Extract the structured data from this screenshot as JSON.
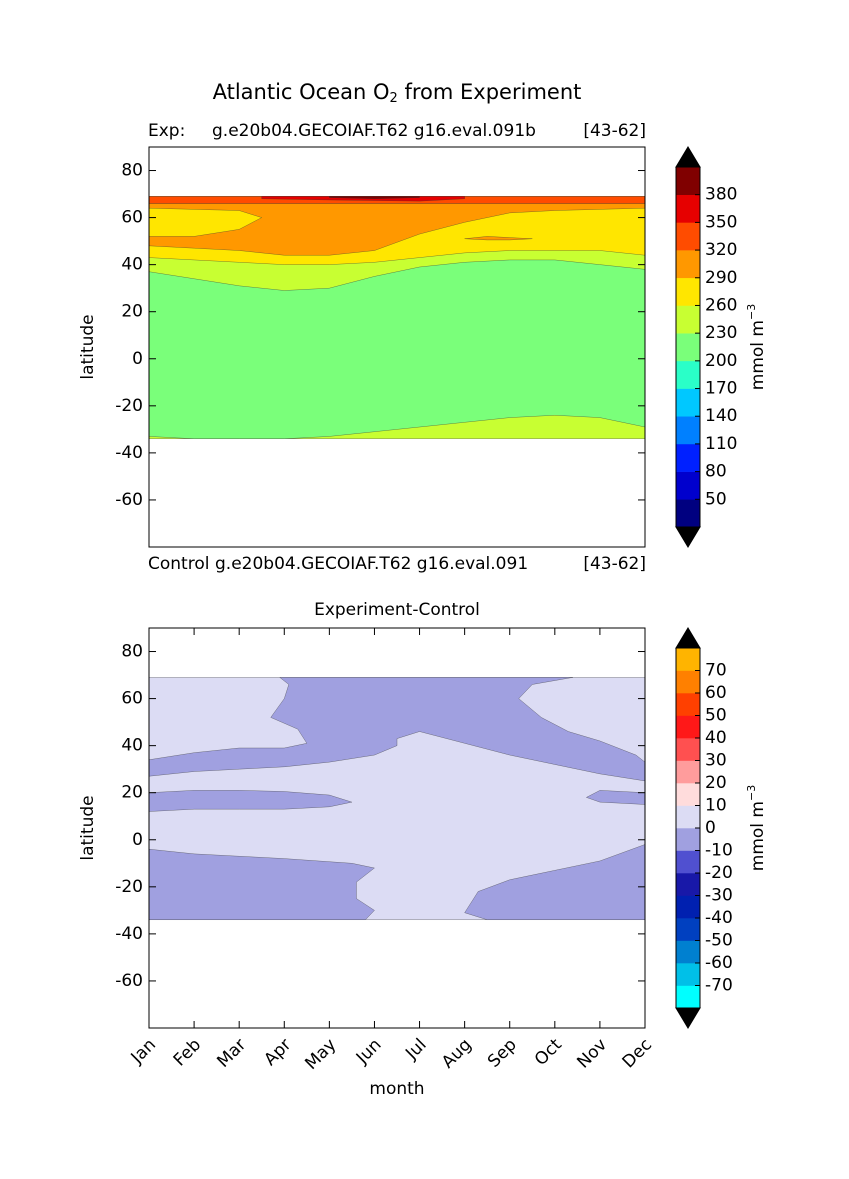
{
  "figure_title": [
    "Atlantic Ocean O",
    "2",
    " from Experiment"
  ],
  "chart_data": [
    {
      "type": "contour",
      "title_left": "Exp:",
      "title": "g.e20b04.GECOIAF.T62 g16.eval.091b",
      "title_right": "[43-62]",
      "footer_left": "Control",
      "footer": "g.e20b04.GECOIAF.T62 g16.eval.091",
      "footer_right": "[43-62]",
      "ylabel": "latitude",
      "xlim": [
        0,
        11
      ],
      "ylim": [
        -80,
        90
      ],
      "yticks": [
        -60,
        -40,
        -20,
        0,
        20,
        40,
        60,
        80
      ],
      "colorbar": {
        "label": [
          "mmol m",
          "−3"
        ],
        "levels": [
          20,
          50,
          80,
          110,
          140,
          170,
          200,
          230,
          260,
          290,
          320,
          350,
          380,
          410
        ],
        "colors": [
          "#000080",
          "#0000cd",
          "#0020ff",
          "#0080ff",
          "#00c8ff",
          "#2affc8",
          "#7aff7a",
          "#c8ff32",
          "#ffe600",
          "#ff9800",
          "#ff4c00",
          "#e60000",
          "#800000"
        ],
        "ticks": [
          50,
          80,
          110,
          140,
          170,
          200,
          230,
          260,
          290,
          320,
          350,
          380
        ],
        "extend_color": "#000000"
      },
      "regions": [
        {
          "value": 230,
          "month": [
            0,
            11,
            11,
            0
          ],
          "lat": [
            -34,
            -34,
            69,
            69
          ]
        },
        {
          "value": 200,
          "month": [
            0,
            1,
            2,
            3,
            4,
            5,
            6,
            7,
            8,
            9,
            10,
            11,
            11,
            10,
            9,
            8,
            7,
            6,
            5,
            4,
            3,
            2,
            1,
            0
          ],
          "lat": [
            -33,
            -34,
            -34,
            -34,
            -33,
            -31,
            -29,
            -27,
            -25,
            -24,
            -25,
            -29,
            38,
            40,
            42,
            42,
            41,
            39,
            35,
            30,
            29,
            31,
            34,
            37
          ]
        },
        {
          "value": 260,
          "month": [
            0,
            1,
            2,
            3,
            4,
            5,
            6,
            7,
            8,
            9,
            10,
            11,
            11,
            0
          ],
          "lat": [
            43,
            42,
            41,
            40,
            40,
            41,
            43,
            45,
            46,
            46,
            46,
            44,
            69,
            69
          ]
        },
        {
          "value": 290,
          "month": [
            0,
            1,
            2,
            3,
            4,
            5,
            6,
            7,
            8,
            9,
            11,
            11,
            0
          ],
          "lat": [
            48,
            47,
            46,
            44,
            44,
            46,
            53,
            58,
            62,
            63,
            64,
            66,
            66
          ]
        },
        {
          "value": 260,
          "month": [
            0,
            1,
            2,
            2.5,
            2,
            0
          ],
          "lat": [
            52,
            52,
            55,
            60,
            63,
            64
          ]
        },
        {
          "value": 290,
          "month": [
            7,
            7.5,
            8.5,
            8,
            7.5
          ],
          "lat": [
            51,
            52,
            51,
            50.5,
            50.5
          ]
        },
        {
          "value": 320,
          "month": [
            0,
            11,
            11,
            0
          ],
          "lat": [
            66,
            66,
            69,
            69
          ]
        },
        {
          "value": 350,
          "month": [
            2.5,
            4,
            6,
            7,
            7,
            2.5
          ],
          "lat": [
            68,
            67.5,
            67,
            68,
            69,
            69
          ]
        },
        {
          "value": 380,
          "month": [
            4,
            5,
            6,
            6,
            4
          ],
          "lat": [
            68.5,
            68,
            68.5,
            69,
            69
          ]
        }
      ]
    },
    {
      "type": "contour",
      "title": "Experiment-Control",
      "xlabel": "month",
      "ylabel": "latitude",
      "xlim": [
        0,
        11
      ],
      "ylim": [
        -80,
        90
      ],
      "xticks": [
        {
          "value": 0,
          "label": "Jan"
        },
        {
          "value": 1,
          "label": "Feb"
        },
        {
          "value": 2,
          "label": "Mar"
        },
        {
          "value": 3,
          "label": "Apr"
        },
        {
          "value": 4,
          "label": "May"
        },
        {
          "value": 5,
          "label": "Jun"
        },
        {
          "value": 6,
          "label": "Jul"
        },
        {
          "value": 7,
          "label": "Aug"
        },
        {
          "value": 8,
          "label": "Sep"
        },
        {
          "value": 9,
          "label": "Oct"
        },
        {
          "value": 10,
          "label": "Nov"
        },
        {
          "value": 11,
          "label": "Dec"
        }
      ],
      "yticks": [
        -60,
        -40,
        -20,
        0,
        20,
        40,
        60,
        80
      ],
      "colorbar": {
        "label": [
          "mmol m",
          "−3"
        ],
        "levels": [
          -80,
          -70,
          -60,
          -50,
          -40,
          -30,
          -20,
          -10,
          0,
          10,
          20,
          30,
          40,
          50,
          60,
          70,
          80
        ],
        "colors": [
          "#00ffff",
          "#00c0e8",
          "#0080d0",
          "#0040c0",
          "#0020b0",
          "#1818a8",
          "#5050d0",
          "#a0a0e0",
          "#dcdcf4",
          "#ffdcdc",
          "#ff9c9c",
          "#ff5050",
          "#ff1818",
          "#ff4000",
          "#ff8000",
          "#ffb400",
          "#ffff00"
        ],
        "ticks": [
          -70,
          -60,
          -50,
          -40,
          -30,
          -20,
          -10,
          0,
          10,
          20,
          30,
          40,
          50,
          60,
          70
        ],
        "extend_color": "#000000"
      },
      "regions": [
        {
          "value": 0,
          "month": [
            0,
            11,
            11,
            0
          ],
          "lat": [
            -34,
            -34,
            69,
            69
          ]
        },
        {
          "value": -10,
          "month": [
            0,
            1,
            2,
            3,
            3.5,
            3.3,
            2.7,
            3,
            3.1,
            2.9,
            9.4,
            8.5,
            8.2,
            8.7,
            9.3,
            10,
            10.8,
            11,
            11,
            10,
            9,
            8,
            7,
            6,
            5.5,
            5.5,
            5,
            4,
            3,
            2,
            1,
            0
          ],
          "lat": [
            34,
            37,
            39,
            39,
            41,
            47,
            52,
            60,
            66,
            69,
            69,
            66,
            60,
            52,
            46,
            42,
            36,
            33,
            25,
            28,
            32,
            36,
            41,
            46,
            43,
            40,
            36,
            33,
            31,
            30,
            29,
            27
          ]
        },
        {
          "value": -10,
          "month": [
            0,
            1,
            2,
            3,
            4,
            4.5,
            4,
            3,
            2,
            1,
            0
          ],
          "lat": [
            20,
            21,
            21,
            20.5,
            19,
            16,
            14,
            13,
            13,
            13,
            12
          ]
        },
        {
          "value": -10,
          "month": [
            11,
            10,
            9.7,
            10,
            11
          ],
          "lat": [
            20,
            21,
            18,
            16,
            15
          ]
        },
        {
          "value": -10,
          "month": [
            0,
            4.8,
            5,
            4.6,
            4.6,
            5,
            4.5,
            3,
            2,
            1,
            0
          ],
          "lat": [
            -34,
            -34,
            -30,
            -25,
            -18,
            -12,
            -10,
            -8,
            -7,
            -6,
            -4
          ]
        },
        {
          "value": -10,
          "month": [
            11,
            7.5,
            7,
            7.3,
            8,
            8.5,
            9,
            10,
            11
          ],
          "lat": [
            -34,
            -34,
            -31,
            -22,
            -17,
            -15,
            -13,
            -9,
            -2
          ]
        }
      ]
    }
  ]
}
